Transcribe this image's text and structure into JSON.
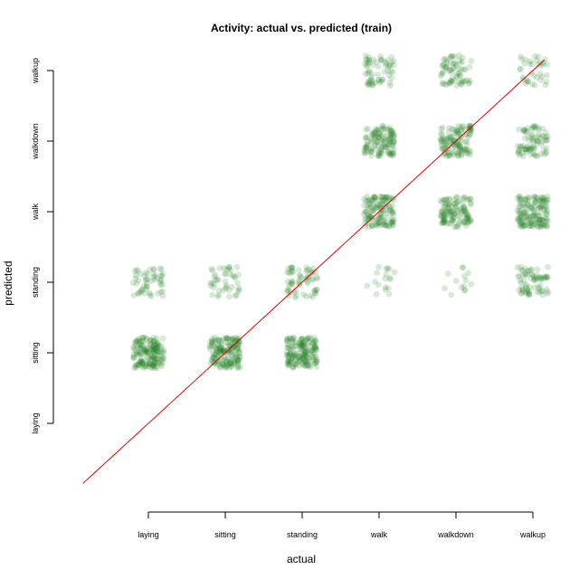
{
  "chart_data": {
    "type": "scatter",
    "title": "Activity: actual vs. predicted (train)",
    "xlabel": "actual",
    "ylabel": "predicted",
    "x_categories": [
      "laying",
      "sitting",
      "standing",
      "walk",
      "walkdown",
      "walkup"
    ],
    "y_categories": [
      "laying",
      "sitting",
      "standing",
      "walk",
      "walkdown",
      "walkup"
    ],
    "point_color": "#1e7b1e",
    "reference_line": {
      "slope": 1,
      "intercept": 0,
      "color": "#e00000"
    },
    "cells": [
      {
        "actual": "laying",
        "predicted": "sitting",
        "density": 0.95
      },
      {
        "actual": "sitting",
        "predicted": "sitting",
        "density": 0.95
      },
      {
        "actual": "standing",
        "predicted": "sitting",
        "density": 0.95
      },
      {
        "actual": "laying",
        "predicted": "standing",
        "density": 0.3
      },
      {
        "actual": "sitting",
        "predicted": "standing",
        "density": 0.25
      },
      {
        "actual": "standing",
        "predicted": "standing",
        "density": 0.35
      },
      {
        "actual": "walk",
        "predicted": "standing",
        "density": 0.1
      },
      {
        "actual": "walkdown",
        "predicted": "standing",
        "density": 0.08
      },
      {
        "actual": "walkup",
        "predicted": "standing",
        "density": 0.4
      },
      {
        "actual": "walk",
        "predicted": "walk",
        "density": 0.75
      },
      {
        "actual": "walkdown",
        "predicted": "walk",
        "density": 0.7
      },
      {
        "actual": "walkup",
        "predicted": "walk",
        "density": 0.85
      },
      {
        "actual": "walk",
        "predicted": "walkdown",
        "density": 0.7
      },
      {
        "actual": "walkdown",
        "predicted": "walkdown",
        "density": 0.7
      },
      {
        "actual": "walkup",
        "predicted": "walkdown",
        "density": 0.45
      },
      {
        "actual": "walk",
        "predicted": "walkup",
        "density": 0.35
      },
      {
        "actual": "walkdown",
        "predicted": "walkup",
        "density": 0.4
      },
      {
        "actual": "walkup",
        "predicted": "walkup",
        "density": 0.2
      }
    ]
  }
}
